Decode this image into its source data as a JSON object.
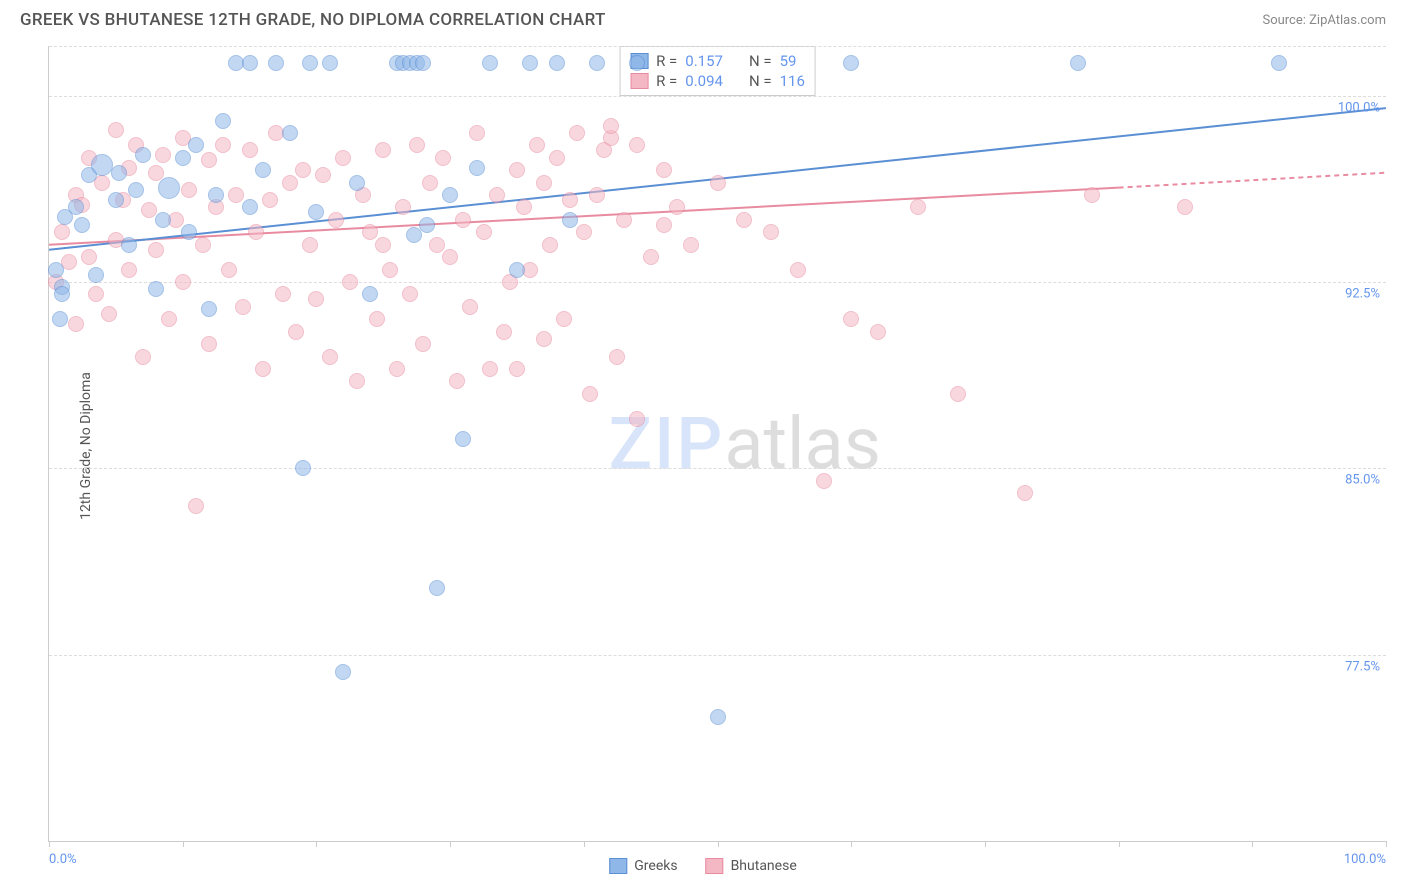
{
  "header": {
    "title": "GREEK VS BHUTANESE 12TH GRADE, NO DIPLOMA CORRELATION CHART",
    "source": "Source: ZipAtlas.com"
  },
  "ylabel": "12th Grade, No Diploma",
  "watermark": {
    "zip": "ZIP",
    "atlas": "atlas"
  },
  "chart": {
    "type": "scatter",
    "xlim": [
      0,
      100
    ],
    "ylim": [
      70,
      102
    ],
    "x_ticks": [
      0,
      10,
      20,
      30,
      40,
      50,
      60,
      70,
      80,
      90,
      100
    ],
    "x_tick_labels": {
      "left": "0.0%",
      "right": "100.0%"
    },
    "y_gridlines": [
      77.5,
      85.0,
      92.5,
      100.0,
      102.0
    ],
    "y_tick_labels": [
      "77.5%",
      "85.0%",
      "92.5%",
      "100.0%"
    ],
    "background_color": "#ffffff",
    "grid_color": "#dddddd",
    "axis_color": "#cccccc",
    "point_radius": 8,
    "point_opacity": 0.55,
    "series": {
      "greeks": {
        "label": "Greeks",
        "fill_color": "#8fb7e8",
        "stroke_color": "#5a8fd4",
        "r_value": "0.157",
        "n_value": "59",
        "trend": {
          "x1": 0,
          "y1": 93.8,
          "x2": 100,
          "y2": 99.5,
          "dash_from_x": 100,
          "width": 2
        },
        "points": [
          {
            "x": 0.5,
            "y": 93.0
          },
          {
            "x": 0.8,
            "y": 91.0
          },
          {
            "x": 1,
            "y": 92.3
          },
          {
            "x": 1,
            "y": 92.0
          },
          {
            "x": 1.2,
            "y": 95.1
          },
          {
            "x": 2,
            "y": 95.5
          },
          {
            "x": 2.5,
            "y": 94.8
          },
          {
            "x": 3,
            "y": 96.8
          },
          {
            "x": 3.5,
            "y": 92.8
          },
          {
            "x": 4,
            "y": 97.2,
            "r": 11
          },
          {
            "x": 5,
            "y": 95.8
          },
          {
            "x": 5.2,
            "y": 96.9
          },
          {
            "x": 6,
            "y": 94.0
          },
          {
            "x": 6.5,
            "y": 96.2
          },
          {
            "x": 7,
            "y": 97.6
          },
          {
            "x": 8,
            "y": 92.2
          },
          {
            "x": 8.5,
            "y": 95.0
          },
          {
            "x": 9,
            "y": 96.3,
            "r": 11
          },
          {
            "x": 10,
            "y": 97.5
          },
          {
            "x": 10.5,
            "y": 94.5
          },
          {
            "x": 11,
            "y": 98.0
          },
          {
            "x": 12,
            "y": 91.4
          },
          {
            "x": 12.5,
            "y": 96.0
          },
          {
            "x": 13,
            "y": 99.0
          },
          {
            "x": 14,
            "y": 101.3
          },
          {
            "x": 15,
            "y": 95.5
          },
          {
            "x": 15,
            "y": 101.3
          },
          {
            "x": 16,
            "y": 97.0
          },
          {
            "x": 17,
            "y": 101.3
          },
          {
            "x": 18,
            "y": 98.5
          },
          {
            "x": 19,
            "y": 85.0
          },
          {
            "x": 19.5,
            "y": 101.3
          },
          {
            "x": 20,
            "y": 95.3
          },
          {
            "x": 21,
            "y": 101.3
          },
          {
            "x": 22,
            "y": 76.8
          },
          {
            "x": 23,
            "y": 96.5
          },
          {
            "x": 24,
            "y": 92.0
          },
          {
            "x": 26,
            "y": 101.3
          },
          {
            "x": 26.5,
            "y": 101.3
          },
          {
            "x": 27,
            "y": 101.3
          },
          {
            "x": 27.3,
            "y": 94.4
          },
          {
            "x": 27.5,
            "y": 101.3
          },
          {
            "x": 28,
            "y": 101.3
          },
          {
            "x": 28.3,
            "y": 94.8
          },
          {
            "x": 29,
            "y": 80.2
          },
          {
            "x": 30,
            "y": 96.0
          },
          {
            "x": 31,
            "y": 86.2
          },
          {
            "x": 32,
            "y": 97.1
          },
          {
            "x": 33,
            "y": 101.3
          },
          {
            "x": 35,
            "y": 93.0
          },
          {
            "x": 36,
            "y": 101.3
          },
          {
            "x": 38,
            "y": 101.3
          },
          {
            "x": 39,
            "y": 95.0
          },
          {
            "x": 41,
            "y": 101.3
          },
          {
            "x": 44,
            "y": 101.3
          },
          {
            "x": 50,
            "y": 75.0
          },
          {
            "x": 60,
            "y": 101.3
          },
          {
            "x": 77,
            "y": 101.3
          },
          {
            "x": 92,
            "y": 101.3
          }
        ]
      },
      "bhutanese": {
        "label": "Bhutanese",
        "fill_color": "#f4b8c4",
        "stroke_color": "#e88ba0",
        "r_value": "0.094",
        "n_value": "116",
        "trend": {
          "x1": 0,
          "y1": 94.0,
          "x2": 80,
          "y2": 96.3,
          "dash_from_x": 80,
          "dash_x2": 100,
          "dash_y2": 96.9,
          "width": 2
        },
        "points": [
          {
            "x": 0.5,
            "y": 92.5
          },
          {
            "x": 1,
            "y": 94.5
          },
          {
            "x": 1.5,
            "y": 93.3
          },
          {
            "x": 2,
            "y": 96.0
          },
          {
            "x": 2,
            "y": 90.8
          },
          {
            "x": 2.5,
            "y": 95.6
          },
          {
            "x": 3,
            "y": 97.5
          },
          {
            "x": 3,
            "y": 93.5
          },
          {
            "x": 3.5,
            "y": 92.0
          },
          {
            "x": 4,
            "y": 96.5
          },
          {
            "x": 4.5,
            "y": 91.2
          },
          {
            "x": 5,
            "y": 98.6
          },
          {
            "x": 5,
            "y": 94.2
          },
          {
            "x": 5.5,
            "y": 95.8
          },
          {
            "x": 6,
            "y": 97.1
          },
          {
            "x": 6,
            "y": 93.0
          },
          {
            "x": 6.5,
            "y": 98.0
          },
          {
            "x": 7,
            "y": 89.5
          },
          {
            "x": 7.5,
            "y": 95.4
          },
          {
            "x": 8,
            "y": 96.9
          },
          {
            "x": 8,
            "y": 93.8
          },
          {
            "x": 8.5,
            "y": 97.6
          },
          {
            "x": 9,
            "y": 91.0
          },
          {
            "x": 9.5,
            "y": 95.0
          },
          {
            "x": 10,
            "y": 98.3
          },
          {
            "x": 10,
            "y": 92.5
          },
          {
            "x": 10.5,
            "y": 96.2
          },
          {
            "x": 11,
            "y": 83.5
          },
          {
            "x": 11.5,
            "y": 94.0
          },
          {
            "x": 12,
            "y": 97.4
          },
          {
            "x": 12,
            "y": 90.0
          },
          {
            "x": 12.5,
            "y": 95.5
          },
          {
            "x": 13,
            "y": 98.0
          },
          {
            "x": 13.5,
            "y": 93.0
          },
          {
            "x": 14,
            "y": 96.0
          },
          {
            "x": 14.5,
            "y": 91.5
          },
          {
            "x": 15,
            "y": 97.8
          },
          {
            "x": 15.5,
            "y": 94.5
          },
          {
            "x": 16,
            "y": 89.0
          },
          {
            "x": 16.5,
            "y": 95.8
          },
          {
            "x": 17,
            "y": 98.5
          },
          {
            "x": 17.5,
            "y": 92.0
          },
          {
            "x": 18,
            "y": 96.5
          },
          {
            "x": 18.5,
            "y": 90.5
          },
          {
            "x": 19,
            "y": 97.0
          },
          {
            "x": 19.5,
            "y": 94.0
          },
          {
            "x": 20,
            "y": 91.8
          },
          {
            "x": 20.5,
            "y": 96.8
          },
          {
            "x": 21,
            "y": 89.5
          },
          {
            "x": 21.5,
            "y": 95.0
          },
          {
            "x": 22,
            "y": 97.5
          },
          {
            "x": 22.5,
            "y": 92.5
          },
          {
            "x": 23,
            "y": 88.5
          },
          {
            "x": 23.5,
            "y": 96.0
          },
          {
            "x": 24,
            "y": 94.5
          },
          {
            "x": 24.5,
            "y": 91.0
          },
          {
            "x": 25,
            "y": 97.8
          },
          {
            "x": 25.5,
            "y": 93.0
          },
          {
            "x": 26,
            "y": 89.0
          },
          {
            "x": 26.5,
            "y": 95.5
          },
          {
            "x": 27,
            "y": 92.0
          },
          {
            "x": 27.5,
            "y": 98.0
          },
          {
            "x": 28,
            "y": 90.0
          },
          {
            "x": 28.5,
            "y": 96.5
          },
          {
            "x": 29,
            "y": 94.0
          },
          {
            "x": 29.5,
            "y": 97.5
          },
          {
            "x": 30,
            "y": 93.5
          },
          {
            "x": 30.5,
            "y": 88.5
          },
          {
            "x": 31,
            "y": 95.0
          },
          {
            "x": 31.5,
            "y": 91.5
          },
          {
            "x": 32,
            "y": 98.5
          },
          {
            "x": 32.5,
            "y": 94.5
          },
          {
            "x": 33,
            "y": 89.0
          },
          {
            "x": 33.5,
            "y": 96.0
          },
          {
            "x": 34,
            "y": 90.5
          },
          {
            "x": 34.5,
            "y": 92.5
          },
          {
            "x": 35,
            "y": 97.0
          },
          {
            "x": 35.5,
            "y": 95.5
          },
          {
            "x": 36,
            "y": 93.0
          },
          {
            "x": 36.5,
            "y": 98.0
          },
          {
            "x": 37,
            "y": 96.5
          },
          {
            "x": 37.5,
            "y": 94.0
          },
          {
            "x": 38,
            "y": 97.5
          },
          {
            "x": 38.5,
            "y": 91.0
          },
          {
            "x": 39,
            "y": 95.8
          },
          {
            "x": 39.5,
            "y": 98.5
          },
          {
            "x": 40,
            "y": 94.5
          },
          {
            "x": 40.5,
            "y": 88.0
          },
          {
            "x": 41,
            "y": 96.0
          },
          {
            "x": 41.5,
            "y": 97.8
          },
          {
            "x": 42,
            "y": 98.3
          },
          {
            "x": 42.5,
            "y": 89.5
          },
          {
            "x": 43,
            "y": 95.0
          },
          {
            "x": 44,
            "y": 87.0
          },
          {
            "x": 45,
            "y": 93.5
          },
          {
            "x": 46,
            "y": 97.0
          },
          {
            "x": 47,
            "y": 95.5
          },
          {
            "x": 48,
            "y": 94.0
          },
          {
            "x": 50,
            "y": 96.5
          },
          {
            "x": 52,
            "y": 95.0
          },
          {
            "x": 54,
            "y": 94.5
          },
          {
            "x": 56,
            "y": 93.0
          },
          {
            "x": 58,
            "y": 84.5
          },
          {
            "x": 60,
            "y": 91.0
          },
          {
            "x": 62,
            "y": 90.5
          },
          {
            "x": 65,
            "y": 95.5
          },
          {
            "x": 68,
            "y": 88.0
          },
          {
            "x": 73,
            "y": 84.0
          },
          {
            "x": 78,
            "y": 96.0
          },
          {
            "x": 85,
            "y": 95.5
          },
          {
            "x": 42,
            "y": 98.8
          },
          {
            "x": 44,
            "y": 98.0
          },
          {
            "x": 46,
            "y": 94.8
          },
          {
            "x": 35,
            "y": 89.0
          },
          {
            "x": 37,
            "y": 90.2
          },
          {
            "x": 25,
            "y": 94.0
          }
        ]
      }
    }
  },
  "stats_labels": {
    "r": "R =",
    "n": "N ="
  },
  "legend_labels": {
    "greeks": "Greeks",
    "bhutanese": "Bhutanese"
  }
}
